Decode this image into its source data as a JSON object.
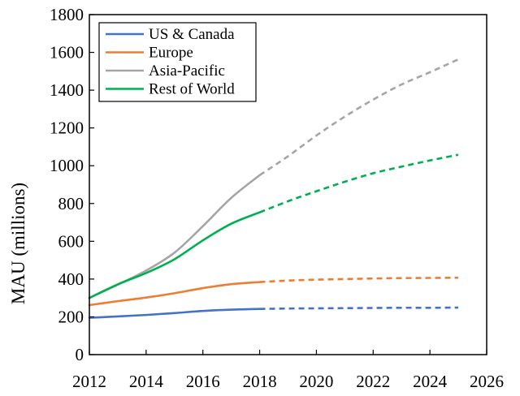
{
  "chart_data": {
    "type": "line",
    "title": "",
    "xlabel": "",
    "ylabel": "MAU (millions)",
    "xlim": [
      2012,
      2026
    ],
    "ylim": [
      0,
      1800
    ],
    "x_ticks": [
      "2012",
      "2014",
      "2016",
      "2018",
      "2020",
      "2022",
      "2024",
      "2026"
    ],
    "y_ticks": [
      "0",
      "200",
      "400",
      "600",
      "800",
      "1000",
      "1200",
      "1400",
      "1600",
      "1800"
    ],
    "grid": false,
    "legend_position": "top-left",
    "forecast_start": 2018,
    "series": [
      {
        "name": "US & Canada",
        "color": "#4472c4",
        "x": [
          2012,
          2013,
          2014,
          2015,
          2016,
          2017,
          2018,
          2019,
          2020,
          2021,
          2022,
          2023,
          2024,
          2025
        ],
        "values": [
          195,
          202,
          210,
          220,
          231,
          238,
          242,
          244,
          245,
          246,
          247,
          248,
          248,
          249
        ]
      },
      {
        "name": "Europe",
        "color": "#ed7d31",
        "x": [
          2012,
          2013,
          2014,
          2015,
          2016,
          2017,
          2018,
          2019,
          2020,
          2021,
          2022,
          2023,
          2024,
          2025
        ],
        "values": [
          262,
          283,
          302,
          325,
          352,
          373,
          384,
          392,
          397,
          400,
          403,
          405,
          406,
          407
        ]
      },
      {
        "name": "Asia-Pacific",
        "color": "#a5a5a5",
        "x": [
          2012,
          2013,
          2014,
          2015,
          2016,
          2017,
          2018,
          2019,
          2020,
          2021,
          2022,
          2023,
          2024,
          2025
        ],
        "values": [
          300,
          370,
          445,
          540,
          680,
          830,
          950,
          1050,
          1160,
          1260,
          1350,
          1430,
          1495,
          1563
        ]
      },
      {
        "name": "Rest of World",
        "color": "#00b050",
        "x": [
          2012,
          2013,
          2014,
          2015,
          2016,
          2017,
          2018,
          2019,
          2020,
          2021,
          2022,
          2023,
          2024,
          2025
        ],
        "values": [
          300,
          372,
          432,
          505,
          605,
          693,
          753,
          812,
          865,
          915,
          960,
          995,
          1028,
          1058
        ]
      }
    ]
  }
}
